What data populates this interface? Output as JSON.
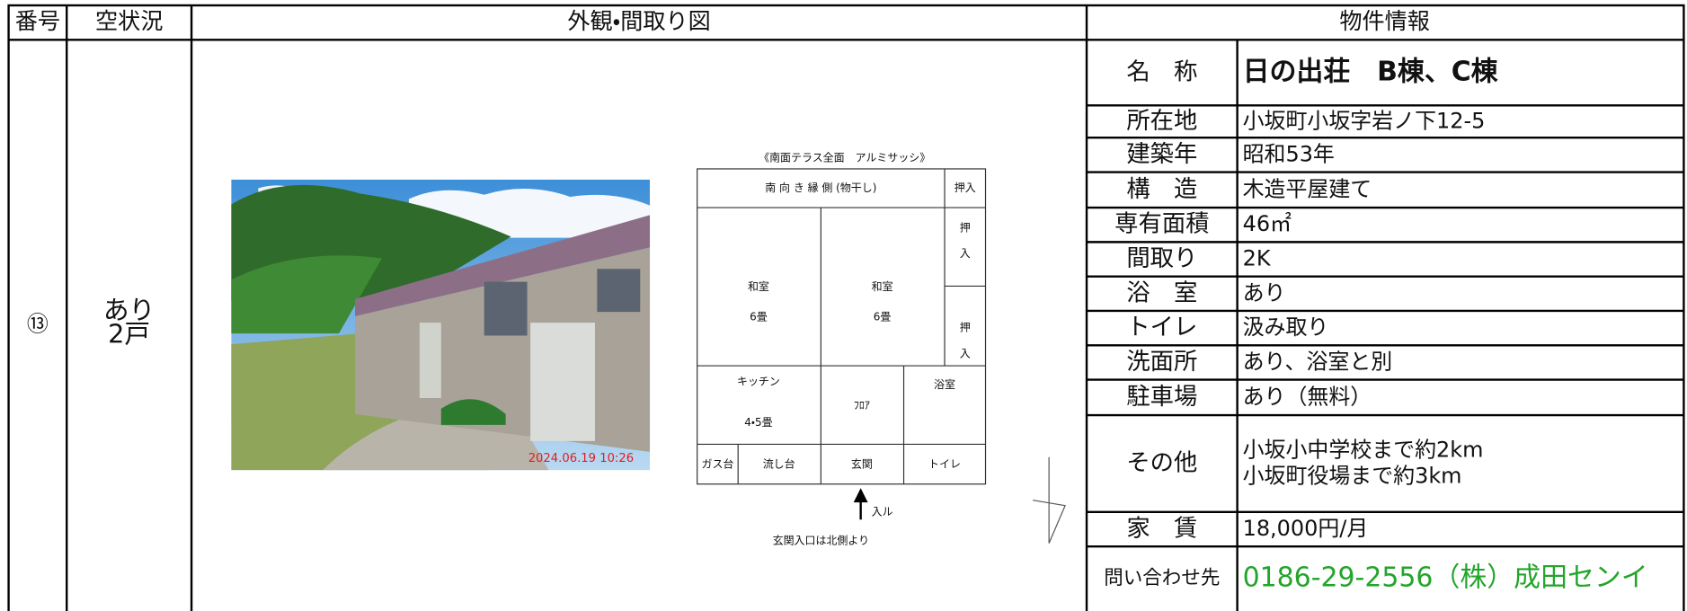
{
  "table": {
    "headers": [
      "番号",
      "空状況",
      "外観・間取り図",
      "物件情報"
    ],
    "row": {
      "number": "⑬",
      "vacancy": [
        "あり",
        "2戸"
      ]
    },
    "photo": {
      "timestamp": "2024.06.19 10:26"
    },
    "floor_plan": {
      "caption": "《南面テラス全面　アルミサッシ》",
      "cells": [
        {
          "lines": [
            "南 向 き 縁 側 (物干し)"
          ]
        },
        {
          "lines": [
            "押入"
          ]
        },
        {
          "lines": [
            "和室",
            "6畳"
          ]
        },
        {
          "lines": [
            "和室",
            "6畳"
          ]
        },
        {
          "lines": [
            "押",
            "入"
          ]
        },
        {
          "lines": [
            "押",
            "入"
          ]
        },
        {
          "lines": [
            "キッチン",
            "4・5畳"
          ]
        },
        {
          "lines": [
            "ﾌﾛｱ"
          ]
        },
        {
          "lines": [
            "浴室"
          ]
        },
        {
          "lines": [
            "ガス台"
          ]
        },
        {
          "lines": [
            "流し台"
          ]
        },
        {
          "lines": [
            "玄関"
          ]
        },
        {
          "lines": [
            "トイレ"
          ]
        }
      ],
      "entry": "入ル",
      "note": "玄関入口は北側より"
    },
    "info": [
      {
        "label": "名　称",
        "values": [
          "日の出荘　B棟、C棟"
        ]
      },
      {
        "label": "所在地",
        "values": [
          "小坂町小坂字岩ノ下12-5"
        ]
      },
      {
        "label": "建築年",
        "values": [
          "昭和53年"
        ]
      },
      {
        "label": "構　造",
        "values": [
          "木造平屋建て"
        ]
      },
      {
        "label": "専有面積",
        "values": [
          "46㎡"
        ]
      },
      {
        "label": "間取り",
        "values": [
          "2K"
        ]
      },
      {
        "label": "浴　室",
        "values": [
          "あり"
        ]
      },
      {
        "label": "トイレ",
        "values": [
          "汲み取り"
        ]
      },
      {
        "label": "洗面所",
        "values": [
          "あり、浴室と別"
        ]
      },
      {
        "label": "駐車場",
        "values": [
          "あり（無料）"
        ]
      },
      {
        "label": "その他",
        "values": [
          "小坂小中学校まで約2km",
          "小坂町役場まで約3km"
        ]
      },
      {
        "label": "家　賃",
        "values": [
          "18,000円/月"
        ]
      },
      {
        "label": "問い合わせ先",
        "values": [
          "0186-29-2556（株）成田センイ"
        ]
      }
    ]
  }
}
